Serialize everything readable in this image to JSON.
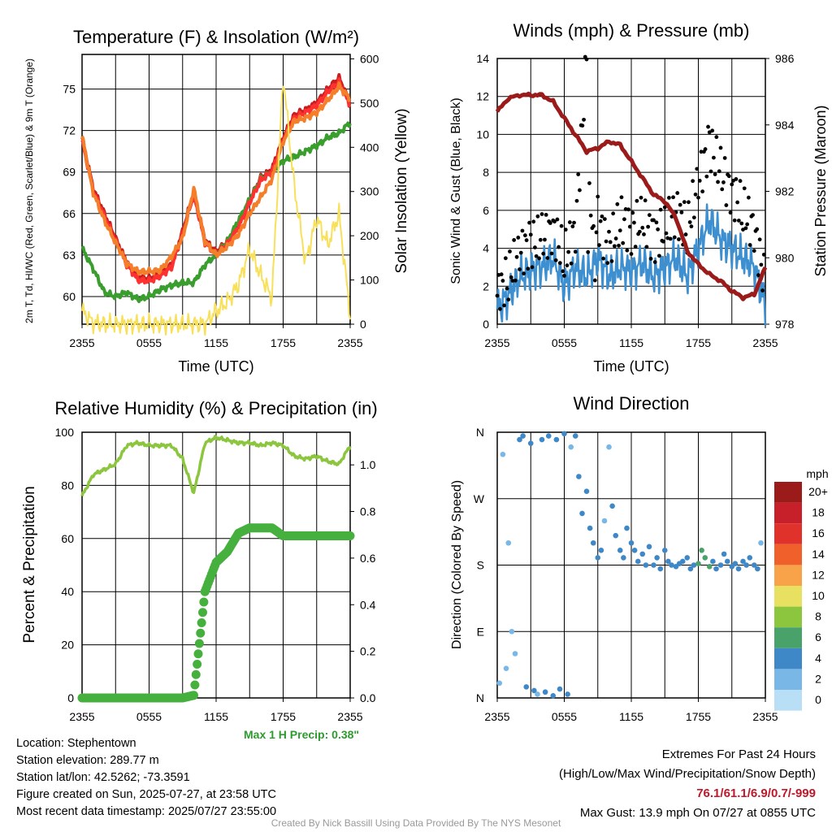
{
  "chart_data": [
    {
      "type": "line",
      "title": "Temperature (F) & Insolation (W/m²)",
      "xlabel": "Time (UTC)",
      "ylabel_left": "2m T, Td, HI/WC (Red, Green, Scarlet/Blue) & 9m T (Orange)",
      "ylabel_right": "Solar Insolation (Yellow)",
      "x_ticks": [
        "2355",
        "0555",
        "1155",
        "1755",
        "2355"
      ],
      "ylim_left": [
        58,
        77.5
      ],
      "ylim_right": [
        0,
        610
      ],
      "y_ticks_left": [
        60,
        63,
        66,
        69,
        72,
        75
      ],
      "y_ticks_right": [
        0,
        100,
        200,
        300,
        400,
        500,
        600
      ],
      "x_hours": [
        0,
        1,
        2,
        3,
        4,
        5,
        6,
        7,
        8,
        9,
        10,
        11,
        12,
        13,
        14,
        15,
        16,
        17,
        18,
        19,
        20,
        21,
        22,
        23,
        24
      ],
      "series": [
        {
          "name": "2m T",
          "color": "#c81e1e",
          "axis": "left",
          "values": [
            71.5,
            67.8,
            66.0,
            64.2,
            62.5,
            61.4,
            61.3,
            61.7,
            62.3,
            64.7,
            67.6,
            64.1,
            63.2,
            64.0,
            65.2,
            67.0,
            68.6,
            69.2,
            71.5,
            73.1,
            73.5,
            74.0,
            75.0,
            75.8,
            74.0
          ]
        },
        {
          "name": "Td",
          "color": "#3a9e2e",
          "axis": "left",
          "values": [
            63.5,
            62.0,
            60.3,
            60.0,
            60.3,
            59.8,
            60.0,
            60.5,
            60.8,
            61.0,
            61.0,
            62.3,
            63.0,
            64.0,
            65.5,
            67.0,
            68.5,
            69.0,
            69.8,
            70.1,
            70.5,
            70.9,
            71.5,
            71.8,
            72.6
          ]
        },
        {
          "name": "HI/WC",
          "color": "#ff3030",
          "axis": "left",
          "values": [
            71.3,
            67.6,
            65.8,
            64.0,
            62.3,
            61.2,
            61.1,
            61.5,
            62.1,
            64.5,
            67.4,
            63.9,
            63.0,
            63.8,
            65.0,
            66.8,
            68.4,
            69.0,
            71.3,
            72.9,
            73.3,
            73.8,
            74.8,
            75.5,
            73.8
          ]
        },
        {
          "name": "9m T",
          "color": "#f47e29",
          "axis": "left",
          "values": [
            71.6,
            67.5,
            65.5,
            63.9,
            62.4,
            61.8,
            61.8,
            61.9,
            62.9,
            64.2,
            67.8,
            64.0,
            63.0,
            63.6,
            64.5,
            66.0,
            67.2,
            68.5,
            71.2,
            72.7,
            72.9,
            73.3,
            74.2,
            75.2,
            74.3
          ]
        },
        {
          "name": "Solar Insolation",
          "color": "#f8e05a",
          "axis": "right",
          "values": [
            30,
            3,
            0,
            0,
            0,
            0,
            0,
            0,
            0,
            0,
            0,
            0,
            30,
            50,
            90,
            170,
            110,
            60,
            560,
            310,
            140,
            240,
            180,
            250,
            20
          ]
        }
      ]
    },
    {
      "type": "line",
      "title": "Winds (mph) & Pressure (mb)",
      "xlabel": "Time (UTC)",
      "ylabel_left": "Sonic Wind & Gust (Blue, Black)",
      "ylabel_right": "Station Pressure (Maroon)",
      "x_ticks": [
        "2355",
        "0555",
        "1155",
        "1755",
        "2355"
      ],
      "ylim_left": [
        0,
        14
      ],
      "ylim_right": [
        978,
        986
      ],
      "y_ticks_left": [
        0,
        2,
        4,
        6,
        8,
        10,
        12,
        14
      ],
      "y_ticks_right": [
        978,
        980,
        982,
        984,
        986
      ],
      "x_hours": [
        0,
        1,
        2,
        3,
        4,
        5,
        6,
        7,
        8,
        9,
        10,
        11,
        12,
        13,
        14,
        15,
        16,
        17,
        18,
        19,
        20,
        21,
        22,
        23,
        24
      ],
      "series": [
        {
          "name": "Sonic Wind",
          "color": "#3d8fd0",
          "axis": "left",
          "values": [
            0.8,
            1.5,
            2.5,
            2.8,
            3.0,
            3.5,
            2.0,
            3.0,
            2.5,
            3.5,
            2.5,
            3.0,
            2.8,
            3.2,
            2.5,
            3.0,
            3.5,
            2.5,
            4.0,
            5.5,
            4.5,
            4.0,
            3.5,
            3.0,
            1.0
          ]
        },
        {
          "name": "Gust",
          "color": "#000000",
          "axis": "left",
          "values": [
            1.5,
            2.5,
            3.8,
            4.2,
            4.5,
            5.0,
            3.5,
            5.0,
            13.9,
            5.5,
            4.0,
            5.5,
            5.0,
            5.5,
            4.5,
            5.0,
            6.0,
            5.0,
            7.5,
            9.5,
            8.0,
            7.0,
            6.0,
            5.0,
            2.0
          ]
        },
        {
          "name": "Station Pressure",
          "color": "#9b1b1b",
          "axis": "right",
          "values": [
            984.4,
            984.8,
            984.9,
            984.9,
            984.9,
            984.7,
            984.2,
            983.7,
            983.2,
            983.3,
            983.5,
            983.4,
            982.9,
            982.4,
            981.9,
            981.7,
            981.2,
            980.2,
            979.8,
            979.5,
            979.3,
            979.0,
            978.8,
            978.9,
            979.7
          ]
        }
      ]
    },
    {
      "type": "line",
      "title": "Relative Humidity (%) & Precipitation (in)",
      "ylabel_left": "Percent & Precipitation",
      "x_ticks": [
        "2355",
        "0555",
        "1155",
        "1755",
        "2355"
      ],
      "ylim_left": [
        0,
        100
      ],
      "ylim_right": [
        0,
        1.14
      ],
      "y_ticks_left": [
        0,
        20,
        40,
        60,
        80,
        100
      ],
      "y_ticks_right": [
        "0.0",
        "0.2",
        "0.4",
        "0.6",
        "0.8",
        "1.0"
      ],
      "x_hours": [
        0,
        1,
        2,
        3,
        4,
        5,
        6,
        7,
        8,
        9,
        10,
        11,
        12,
        13,
        14,
        15,
        16,
        17,
        18,
        19,
        20,
        21,
        22,
        23,
        24
      ],
      "series": [
        {
          "name": "Relative Humidity",
          "color": "#8cc63f",
          "axis": "left",
          "values": [
            76,
            84,
            86,
            88,
            95,
            96,
            95,
            95,
            95,
            90,
            77,
            96,
            98,
            97,
            96,
            96,
            95,
            96,
            95,
            91,
            90,
            91,
            89,
            88,
            95
          ]
        },
        {
          "name": "Precipitation",
          "color": "#46b03e",
          "axis": "left",
          "values": [
            0,
            0,
            0,
            0,
            0,
            0,
            0,
            0,
            0,
            0,
            1,
            40,
            51,
            55,
            62,
            64,
            64,
            64,
            61,
            61,
            61,
            61,
            61,
            61,
            61
          ]
        }
      ]
    },
    {
      "type": "scatter",
      "title": "Wind Direction",
      "ylabel_left": "Direction (Colored By Speed)",
      "x_ticks": [
        "2355",
        "0555",
        "1155",
        "1755",
        "2355"
      ],
      "y_ticks": [
        "N",
        "E",
        "S",
        "W",
        "N"
      ],
      "ylim": [
        0,
        360
      ],
      "legend_title": "mph",
      "legend_labels": [
        "20+",
        "18",
        "16",
        "14",
        "12",
        "10",
        "8",
        "6",
        "4",
        "2",
        "0"
      ],
      "legend_colors": [
        "#9b1b1b",
        "#c8202a",
        "#e0322a",
        "#f0602a",
        "#f8a34a",
        "#e8e060",
        "#8cc63f",
        "#49a26a",
        "#3f88c8",
        "#78b7e6",
        "#b8dff5"
      ],
      "points_hours": [
        0.2,
        0.5,
        0.8,
        1.0,
        1.3,
        1.6,
        2.0,
        2.3,
        2.6,
        3.0,
        3.3,
        3.6,
        4.0,
        4.3,
        4.6,
        5.0,
        5.3,
        5.6,
        6.0,
        6.3,
        6.6,
        7.0,
        7.3,
        7.6,
        8.0,
        8.3,
        8.6,
        9.0,
        9.3,
        9.6,
        10.0,
        10.3,
        10.6,
        11.0,
        11.3,
        11.6,
        12.0,
        12.3,
        12.6,
        13.0,
        13.3,
        13.6,
        14.0,
        14.3,
        14.6,
        15.0,
        15.3,
        15.6,
        16.0,
        16.3,
        16.6,
        17.0,
        17.3,
        17.6,
        18.0,
        18.3,
        18.6,
        19.0,
        19.3,
        19.6,
        20.0,
        20.3,
        20.6,
        21.0,
        21.3,
        21.6,
        22.0,
        22.3,
        22.6,
        23.0,
        23.3,
        23.6
      ],
      "points_direction": [
        20,
        330,
        40,
        210,
        90,
        60,
        350,
        355,
        15,
        345,
        10,
        5,
        350,
        8,
        355,
        3,
        350,
        12,
        358,
        5,
        340,
        355,
        300,
        250,
        280,
        230,
        210,
        190,
        200,
        240,
        340,
        260,
        220,
        200,
        190,
        230,
        210,
        200,
        185,
        195,
        180,
        205,
        180,
        190,
        175,
        200,
        185,
        180,
        178,
        182,
        185,
        190,
        175,
        180,
        182,
        200,
        190,
        178,
        185,
        175,
        180,
        195,
        185,
        178,
        182,
        175,
        185,
        180,
        190,
        180,
        175,
        210
      ],
      "points_speed": [
        1,
        2,
        1,
        2,
        1,
        2,
        3,
        3,
        3,
        3,
        3,
        2,
        3,
        3,
        3,
        3,
        4,
        3,
        3,
        3,
        2,
        3,
        3,
        3,
        3,
        3,
        4,
        3,
        3,
        2,
        2,
        3,
        3,
        3,
        3,
        3,
        3,
        3,
        3,
        3,
        3,
        3,
        3,
        4,
        3,
        3,
        3,
        4,
        3,
        3,
        4,
        4,
        4,
        4,
        5,
        6,
        6,
        5,
        4,
        4,
        3,
        3,
        3,
        3,
        3,
        3,
        3,
        3,
        3,
        3,
        3,
        2
      ]
    }
  ],
  "footer": {
    "max_precip": "Max 1 H Precip: 0.38\"",
    "location": "Location: Stephentown",
    "elevation": "Station elevation: 289.77 m",
    "latlon": "Station lat/lon: 42.5262; -73.3591",
    "created": "Figure created on Sun, 2025-07-27, at 23:58 UTC",
    "recent": "Most recent data timestamp: 2025/07/27 23:55:00",
    "extremes_title": "Extremes For Past 24 Hours",
    "extremes_sub": "(High/Low/Max Wind/Precipitation/Snow Depth)",
    "extremes_values": "76.1/61.1/6.9/0.7/-999",
    "max_gust": "Max Gust: 13.9 mph On 07/27 at 0855 UTC",
    "credit": "Created By Nick Bassill Using Data Provided By The NYS Mesonet"
  }
}
